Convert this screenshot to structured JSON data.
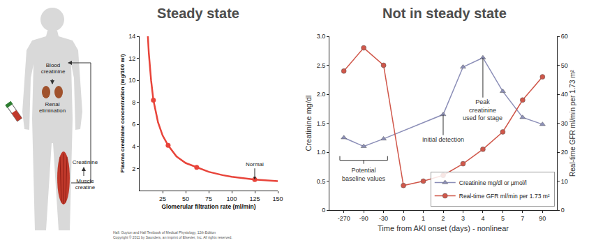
{
  "diagram": {
    "labels": {
      "blood": "Blood\ncreatinine",
      "renal": "Renal\nelimination",
      "creatinine": "Creatinine",
      "muscle": "Muscle\ncreatine"
    }
  },
  "chart_data": [
    {
      "type": "line",
      "title": "Steady state",
      "x_label": "Glomerular filtration rate (ml/min)",
      "y_label": "Plasma creatinine concentration (mg/100 ml)",
      "series": [
        {
          "x": [
            9,
            10,
            12.5,
            15,
            20,
            25,
            31,
            40,
            50,
            62,
            75,
            90,
            100,
            125,
            150
          ],
          "values": [
            14,
            12.5,
            10,
            8.2,
            6.2,
            5,
            4.1,
            3.1,
            2.5,
            2.1,
            1.7,
            1.4,
            1.25,
            1.0,
            0.85
          ],
          "color": "#e8443a",
          "marker": "none",
          "line_style": "solid"
        },
        {
          "x": [
            15,
            31,
            62,
            125
          ],
          "values": [
            8.2,
            4.1,
            2.1,
            1.0
          ],
          "color": "#e8443a",
          "marker": "circle",
          "line_style": "none"
        }
      ],
      "xlim": [
        0,
        150
      ],
      "xticks": [
        25,
        50,
        75,
        100,
        125,
        150
      ],
      "ylim": [
        0,
        14
      ],
      "yticks": [
        2,
        4,
        6,
        8,
        10,
        12,
        14
      ],
      "grid": false,
      "annotations": [
        {
          "text": "Normal",
          "x": 125,
          "y": 1.0
        }
      ],
      "source": "Hall: Guyton and Hall Textbook of Medical Physiology, 12th Edition\nCopyright © 2011 by Saunders, an imprint of Elsevier, Inc. All rights reserved."
    },
    {
      "type": "line",
      "title": "Not in steady state",
      "x_label": "Time from AKI onset (days) - nonlinear",
      "y_label": "Creatinine mg/dl",
      "y2_label": "Real-time GFR ml/min per 1.73 m²",
      "categories": [
        "-270",
        "-90",
        "-30",
        "0",
        "1",
        "2",
        "3",
        "4",
        "5",
        "7",
        "90"
      ],
      "series": [
        {
          "name": "Creatinine mg/dl or µmol/l",
          "color": "#8c8fb8",
          "marker": "triangle-up",
          "line_style": "solid",
          "values": [
            1.25,
            1.1,
            1.23,
            null,
            null,
            1.65,
            2.47,
            2.63,
            2.05,
            1.6,
            1.48
          ]
        },
        {
          "name": "Real-time GFR ml/min per 1.73 m²",
          "color": "#d0574a",
          "marker": "circle",
          "line_style": "solid",
          "axis": "y2",
          "values": [
            48,
            56,
            50,
            8.5,
            10,
            12,
            16,
            21,
            27,
            38,
            46
          ]
        }
      ],
      "ylim": [
        0,
        3
      ],
      "yticks": [
        0,
        0.5,
        {
          "value": 1,
          "label": "1.0"
        },
        1.5,
        {
          "value": 2,
          "label": "2.0"
        },
        2.5,
        {
          "value": 3,
          "label": "3.0"
        }
      ],
      "y2lim": [
        0,
        60
      ],
      "y2ticks": [
        0,
        10,
        20,
        30,
        40,
        50,
        60
      ],
      "grid": false,
      "legend": "bottom right",
      "annotations": [
        {
          "text": "Peak\ncreatinine\nused for stage",
          "x": "4",
          "y": 2.63
        },
        {
          "text": "Initial detection",
          "x": "2",
          "y": 1.65
        }
      ],
      "bracket": {
        "text": "Potential\nbaseline values",
        "from": "-270",
        "to": "-30"
      }
    }
  ]
}
